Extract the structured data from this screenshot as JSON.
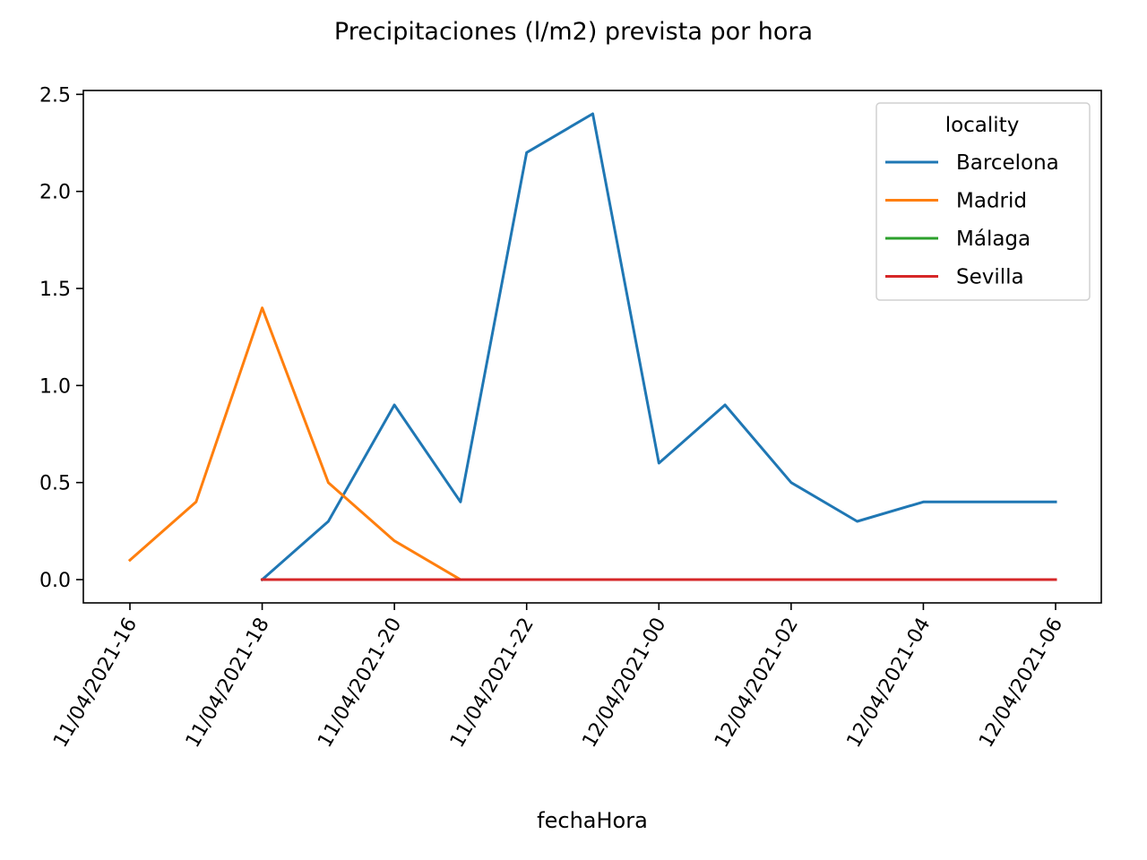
{
  "chart_data": {
    "type": "line",
    "title": "Precipitaciones (l/m2) prevista por hora",
    "xlabel": "fechaHora",
    "ylabel": "",
    "x_ticks": [
      "11/04/2021-16",
      "11/04/2021-18",
      "11/04/2021-20",
      "11/04/2021-22",
      "12/04/2021-00",
      "12/04/2021-02",
      "12/04/2021-04",
      "12/04/2021-06"
    ],
    "y_ticks": [
      "0.0",
      "0.5",
      "1.0",
      "1.5",
      "2.0",
      "2.5"
    ],
    "ylim": [
      -0.12,
      2.52
    ],
    "legend": {
      "title": "locality",
      "placement": "upper-right"
    },
    "series": [
      {
        "name": "Barcelona",
        "color": "#1f77b4",
        "x": [
          "11/04/2021-18",
          "11/04/2021-19",
          "11/04/2021-20",
          "11/04/2021-21",
          "11/04/2021-22",
          "11/04/2021-23",
          "12/04/2021-00",
          "12/04/2021-01",
          "12/04/2021-02",
          "12/04/2021-03",
          "12/04/2021-04",
          "12/04/2021-05",
          "12/04/2021-06"
        ],
        "values": [
          0.0,
          0.3,
          0.9,
          0.4,
          2.2,
          2.4,
          0.6,
          0.9,
          0.5,
          0.3,
          0.4,
          0.4,
          0.4
        ]
      },
      {
        "name": "Madrid",
        "color": "#ff7f0e",
        "x": [
          "11/04/2021-16",
          "11/04/2021-17",
          "11/04/2021-18",
          "11/04/2021-19",
          "11/04/2021-20",
          "11/04/2021-21",
          "11/04/2021-22",
          "11/04/2021-23",
          "12/04/2021-00",
          "12/04/2021-01",
          "12/04/2021-02",
          "12/04/2021-03",
          "12/04/2021-04",
          "12/04/2021-05",
          "12/04/2021-06"
        ],
        "values": [
          0.1,
          0.4,
          1.4,
          0.5,
          0.2,
          0.0,
          0.0,
          0.0,
          0.0,
          0.0,
          0.0,
          0.0,
          0.0,
          0.0,
          0.0
        ]
      },
      {
        "name": "Málaga",
        "color": "#2ca02c",
        "x": [
          "11/04/2021-18",
          "11/04/2021-19",
          "11/04/2021-20",
          "11/04/2021-21",
          "11/04/2021-22",
          "11/04/2021-23",
          "12/04/2021-00",
          "12/04/2021-01",
          "12/04/2021-02",
          "12/04/2021-03",
          "12/04/2021-04",
          "12/04/2021-05",
          "12/04/2021-06"
        ],
        "values": [
          0.0,
          0.0,
          0.0,
          0.0,
          0.0,
          0.0,
          0.0,
          0.0,
          0.0,
          0.0,
          0.0,
          0.0,
          0.0
        ]
      },
      {
        "name": "Sevilla",
        "color": "#d62728",
        "x": [
          "11/04/2021-18",
          "11/04/2021-19",
          "11/04/2021-20",
          "11/04/2021-21",
          "11/04/2021-22",
          "11/04/2021-23",
          "12/04/2021-00",
          "12/04/2021-01",
          "12/04/2021-02",
          "12/04/2021-03",
          "12/04/2021-04",
          "12/04/2021-05",
          "12/04/2021-06"
        ],
        "values": [
          0.0,
          0.0,
          0.0,
          0.0,
          0.0,
          0.0,
          0.0,
          0.0,
          0.0,
          0.0,
          0.0,
          0.0,
          0.0
        ]
      }
    ]
  }
}
